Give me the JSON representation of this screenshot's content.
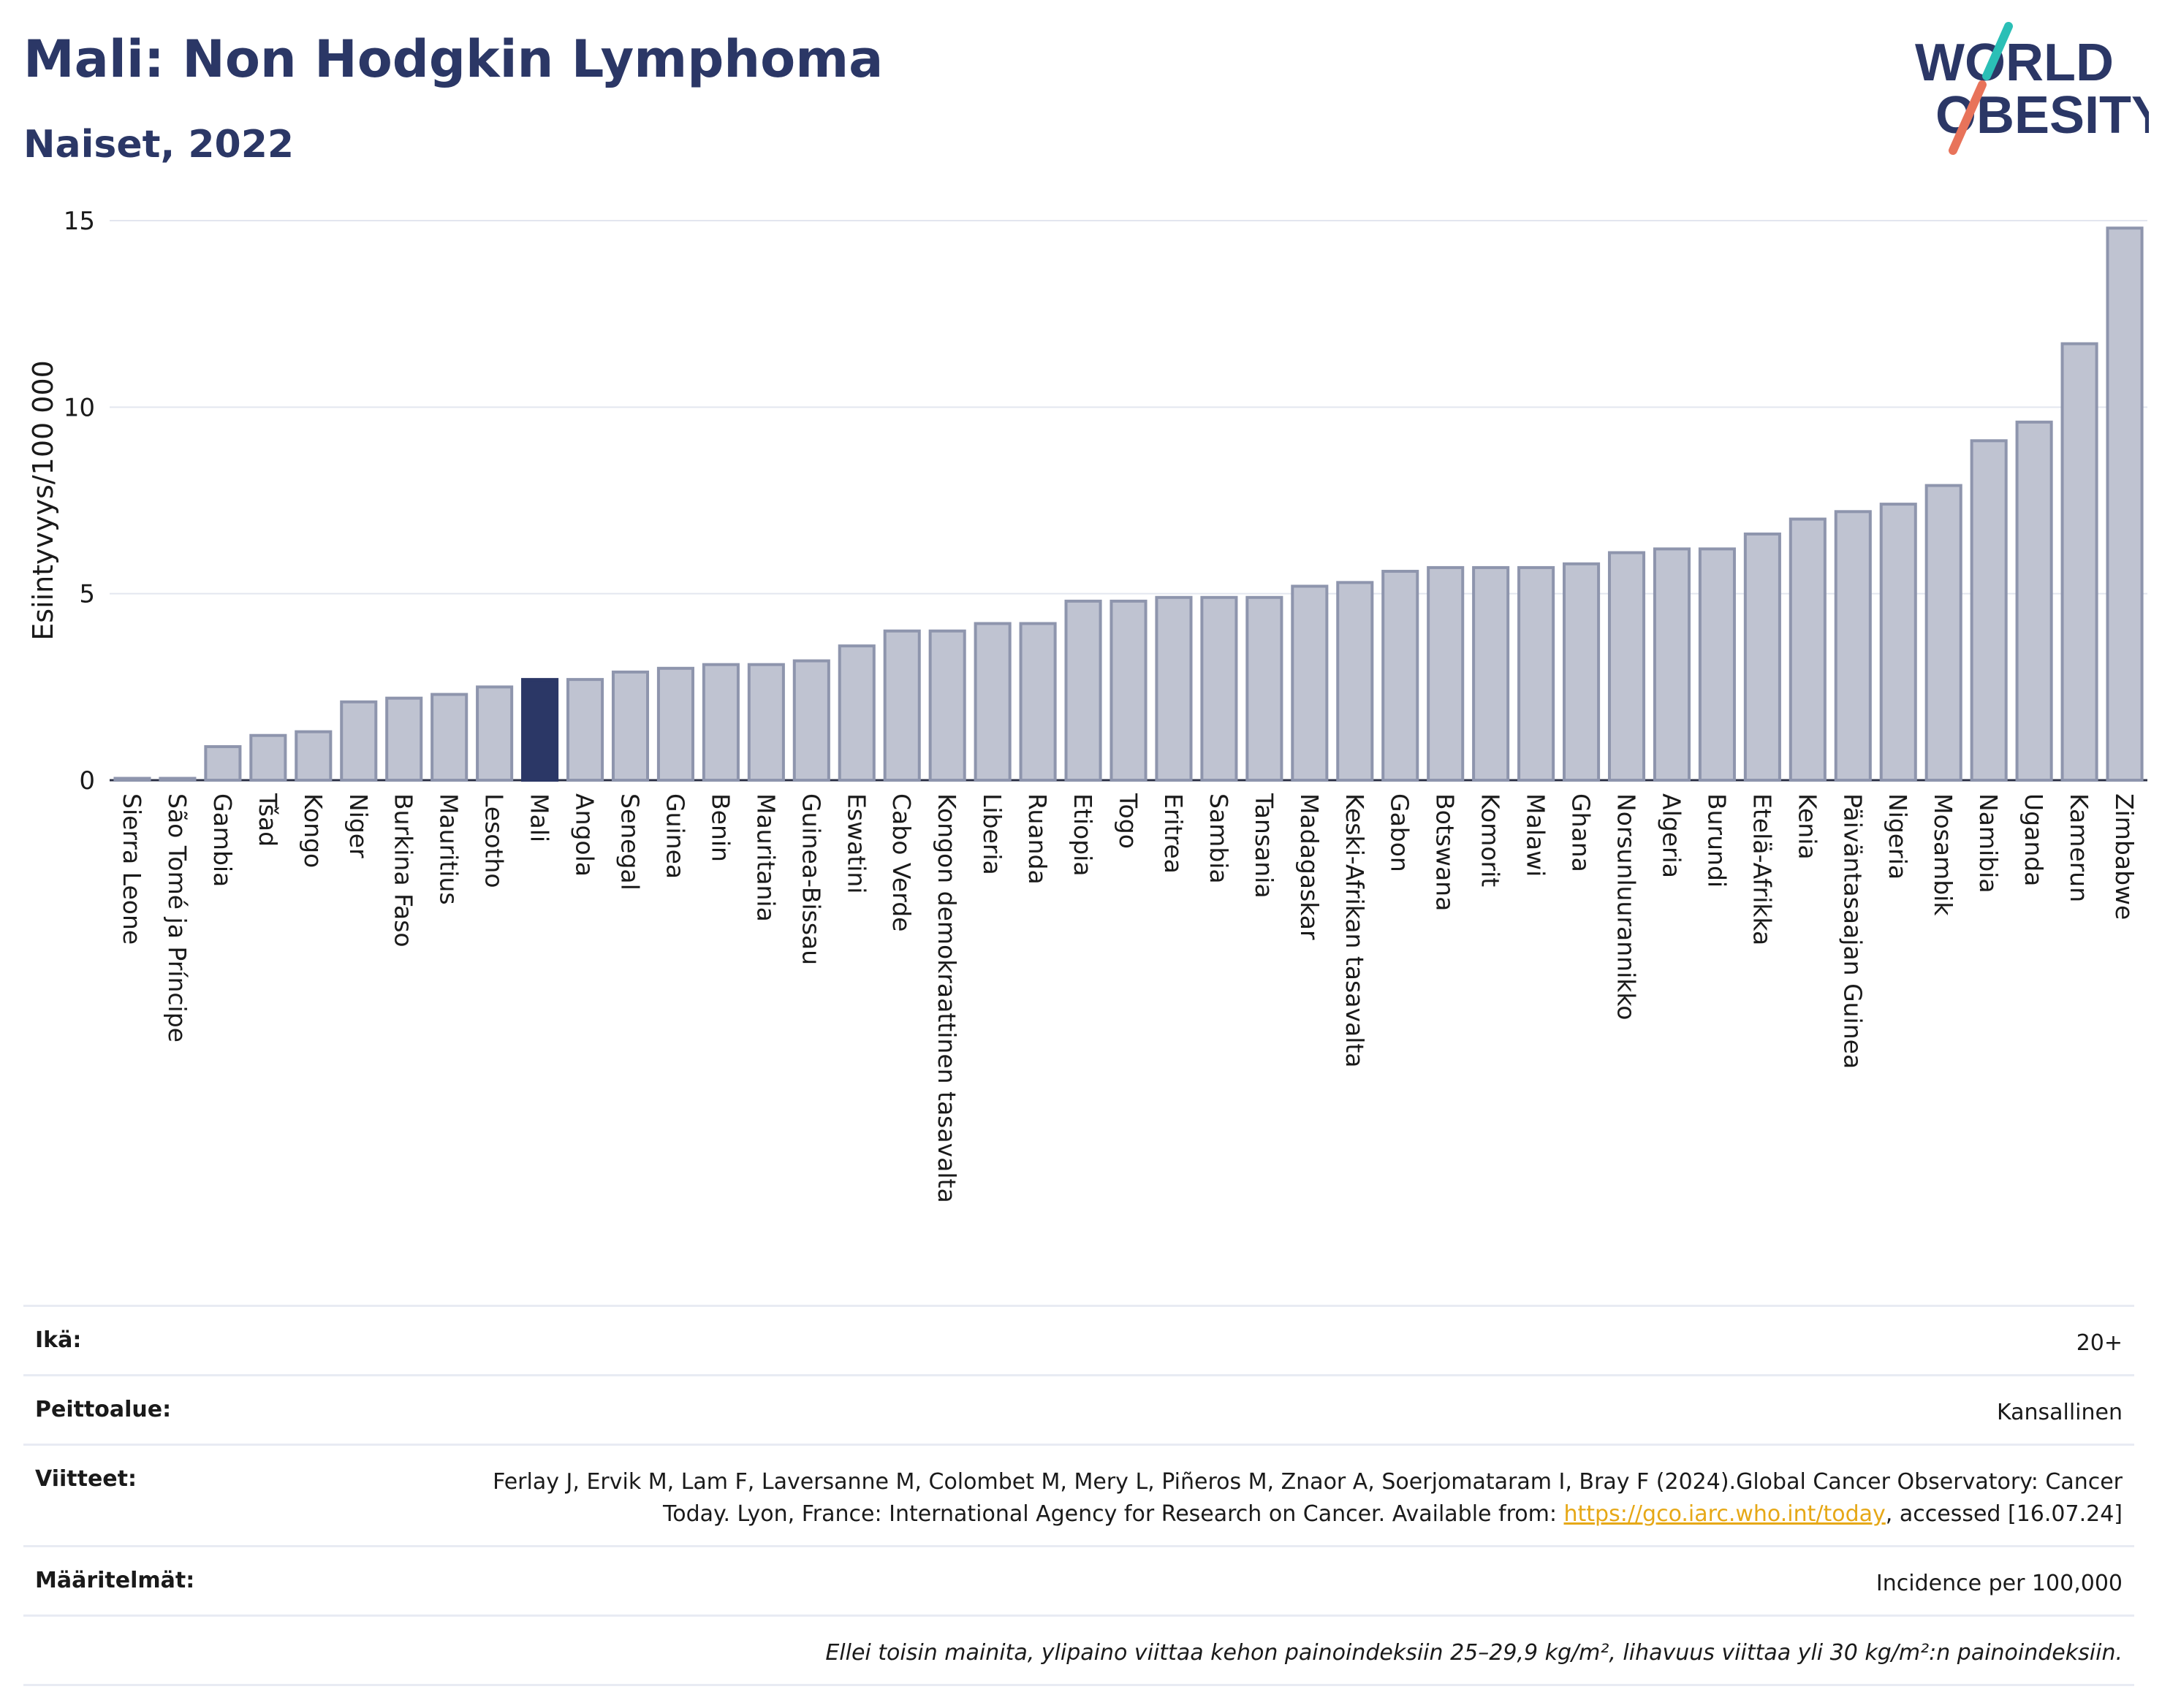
{
  "header": {
    "title": "Mali: Non Hodgkin Lymphoma",
    "subtitle": "Naiset, 2022",
    "logo_line1": "WORLD",
    "logo_line2": "OBESITY"
  },
  "colors": {
    "title": "#2b3766",
    "bar": "#bfc3d1",
    "bar_stroke": "#8e95ad",
    "highlight": "#2b3766",
    "link": "#e6a817",
    "logo_teal": "#2bbfb6",
    "logo_coral": "#e8735a"
  },
  "chart_data": {
    "type": "bar",
    "ylabel": "Esiintyvyys/100 000",
    "ylim": [
      0,
      15
    ],
    "yticks": [
      0,
      5,
      10,
      15
    ],
    "highlight": "Mali",
    "categories": [
      "Sierra Leone",
      "São Tomé ja Príncipe",
      "Gambia",
      "Tšad",
      "Kongo",
      "Niger",
      "Burkina Faso",
      "Mauritius",
      "Lesotho",
      "Mali",
      "Angola",
      "Senegal",
      "Guinea",
      "Benin",
      "Mauritania",
      "Guinea-Bissau",
      "Eswatini",
      "Cabo Verde",
      "Kongon demokraattinen tasavalta",
      "Liberia",
      "Ruanda",
      "Etiopia",
      "Togo",
      "Eritrea",
      "Sambia",
      "Tansania",
      "Madagaskar",
      "Keski-Afrikan tasavalta",
      "Gabon",
      "Botswana",
      "Komorit",
      "Malawi",
      "Ghana",
      "Norsunluurannikko",
      "Algeria",
      "Burundi",
      "Etelä-Afrikka",
      "Kenia",
      "Päiväntasaajan Guinea",
      "Nigeria",
      "Mosambik",
      "Namibia",
      "Uganda",
      "Kamerun",
      "Zimbabwe"
    ],
    "values": [
      0.05,
      0.05,
      0.9,
      1.2,
      1.3,
      2.1,
      2.2,
      2.3,
      2.5,
      2.7,
      2.7,
      2.9,
      3.0,
      3.1,
      3.1,
      3.2,
      3.6,
      4.0,
      4.0,
      4.2,
      4.2,
      4.8,
      4.8,
      4.9,
      4.9,
      4.9,
      5.2,
      5.3,
      5.6,
      5.7,
      5.7,
      5.7,
      5.8,
      6.1,
      6.2,
      6.2,
      6.6,
      7.0,
      7.2,
      7.4,
      7.9,
      9.1,
      9.6,
      11.7,
      14.8
    ]
  },
  "meta": {
    "age_label": "Ikä:",
    "age_value": "20+",
    "coverage_label": "Peittoalue:",
    "coverage_value": "Kansallinen",
    "refs_label": "Viitteet:",
    "refs_text_1": "Ferlay J, Ervik M, Lam F, Laversanne M, Colombet M, Mery L, Piñeros M, Znaor A, Soerjomataram I, Bray F (2024).Global Cancer Observatory: Cancer Today. Lyon, France: International Agency for Research on Cancer. Available from: ",
    "refs_link": "https://gco.iarc.who.int/today",
    "refs_text_2": ", accessed [16.07.24]",
    "defs_label": "Määritelmät:",
    "defs_value": "Incidence per 100,000",
    "note": "Ellei toisin mainita, ylipaino viittaa kehon painoindeksiin 25–29,9 kg/m², lihavuus viittaa yli 30 kg/m²:n painoindeksiin."
  }
}
